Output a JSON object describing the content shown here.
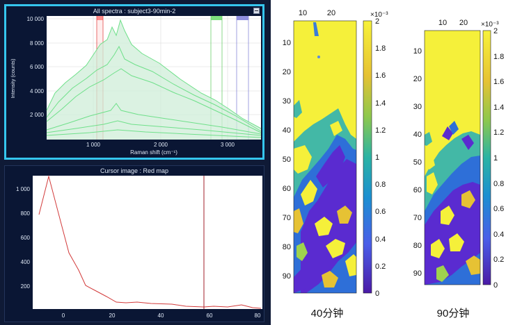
{
  "spectra_panel": {
    "title": "All spectra : subject3-90min-2",
    "ylabel": "Intensity (counts)",
    "xlabel": "Raman shift (cm⁻¹)",
    "yticks": [
      "10 000",
      "8 000",
      "6 000",
      "4 000",
      "2 000"
    ],
    "xticks": [
      "1 000",
      "2 000",
      "3 000"
    ],
    "minimize_label": "minimize"
  },
  "cursor_panel": {
    "title": "Cursor image : Red map",
    "yticks": [
      "1 000",
      "800",
      "600",
      "400",
      "200"
    ],
    "xticks": [
      "0",
      "20",
      "40",
      "60",
      "80"
    ]
  },
  "heatmaps": [
    {
      "caption": "40分钟",
      "xticks": [
        "10",
        "20"
      ],
      "yticks": [
        "10",
        "20",
        "30",
        "40",
        "50",
        "60",
        "70",
        "80",
        "90"
      ],
      "colorbar_ticks": [
        "2",
        "1.8",
        "1.6",
        "1.4",
        "1.2",
        "1",
        "0.8",
        "0.6",
        "0.4",
        "0.2",
        "0"
      ],
      "colorbar_exponent": "×10⁻³"
    },
    {
      "caption": "90分钟",
      "xticks": [
        "10",
        "20"
      ],
      "yticks": [
        "10",
        "20",
        "30",
        "40",
        "50",
        "60",
        "70",
        "80",
        "90"
      ],
      "colorbar_ticks": [
        "2",
        "1.8",
        "1.6",
        "1.4",
        "1.2",
        "1",
        "0.8",
        "0.6",
        "0.4",
        "0.2",
        "0"
      ],
      "colorbar_exponent": "×10⁻³"
    }
  ],
  "colors": {
    "accent_border": "#35c6ee",
    "spectrum_green": "#6fe08a",
    "cursor_red": "#d23a3a",
    "yellow": "#f5f03a"
  }
}
